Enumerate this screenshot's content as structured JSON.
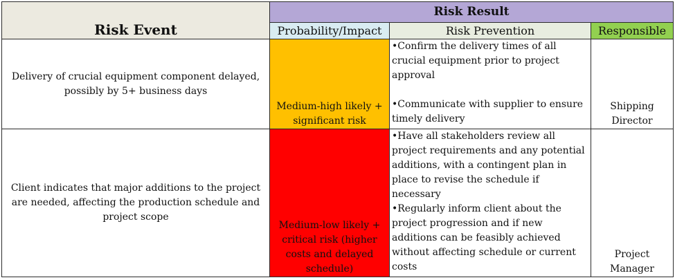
{
  "headers": {
    "risk_event": "Risk Event",
    "risk_result": "Risk Result",
    "probability_impact": "Probability/Impact",
    "risk_prevention": "Risk Prevention",
    "responsible": "Responsible"
  },
  "rows": [
    {
      "event": "Delivery of crucial equipment component delayed, possibly by 5+ business days",
      "probability": "Medium-high likely + significant risk",
      "probability_color": "#ffc000",
      "prevention": [
        "•Confirm the delivery times of all crucial equipment prior to project approval",
        "•Communicate with supplier to ensure timely delivery"
      ],
      "responsible": "Shipping Director"
    },
    {
      "event": "Client indicates that major additions to the project are needed, affecting the production schedule and project scope",
      "probability": "Medium-low likely + critical risk (higher costs and delayed schedule)",
      "probability_color": "#ff0000",
      "prevention": [
        "•Have all stakeholders review all project requirements and any potential additions, with a contingent plan in place to revise the schedule if necessary",
        "•Regularly inform client about the project progression and if new additions can be feasibly achieved without affecting schedule or current costs"
      ],
      "responsible": "Project Manager"
    }
  ],
  "colors": {
    "header_event_bg": "#eceae0",
    "header_result_bg": "#b4a7d6",
    "header_probability_bg": "#d9ecf2",
    "header_prevention_bg": "#e8ede0",
    "header_responsible_bg": "#92d050"
  }
}
